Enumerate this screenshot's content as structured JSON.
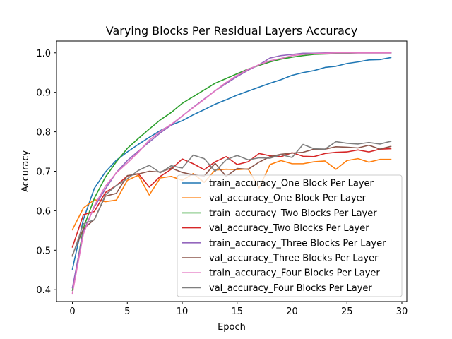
{
  "chart_data": {
    "type": "line",
    "title": "Varying Blocks Per Residual Layers Accuracy",
    "xlabel": "Epoch",
    "ylabel": "Accuracy",
    "xlim": [
      -1.45,
      30.45
    ],
    "ylim": [
      0.37,
      1.03
    ],
    "xticks": [
      0,
      5,
      10,
      15,
      20,
      25,
      30
    ],
    "yticks": [
      0.4,
      0.5,
      0.6,
      0.7,
      0.8,
      0.9,
      1.0
    ],
    "ytick_labels": [
      "0.4",
      "0.5",
      "0.6",
      "0.7",
      "0.8",
      "0.9",
      "1.0"
    ],
    "legend_position": "lower-right",
    "x": [
      0,
      1,
      2,
      3,
      4,
      5,
      6,
      7,
      8,
      9,
      10,
      11,
      12,
      13,
      14,
      15,
      16,
      17,
      18,
      19,
      20,
      21,
      22,
      23,
      24,
      25,
      26,
      27,
      28,
      29
    ],
    "series": [
      {
        "name": "train_accuracy_One Block Per Layer",
        "color": "#1f77b4",
        "values": [
          0.452,
          0.578,
          0.657,
          0.698,
          0.728,
          0.749,
          0.768,
          0.786,
          0.803,
          0.817,
          0.828,
          0.843,
          0.856,
          0.87,
          0.881,
          0.893,
          0.903,
          0.913,
          0.923,
          0.932,
          0.943,
          0.95,
          0.955,
          0.963,
          0.966,
          0.973,
          0.977,
          0.982,
          0.983,
          0.988
        ]
      },
      {
        "name": "val_accuracy_One Block Per Layer",
        "color": "#ff7f0e",
        "values": [
          0.552,
          0.607,
          0.628,
          0.623,
          0.627,
          0.677,
          0.69,
          0.64,
          0.683,
          0.687,
          0.677,
          0.694,
          0.672,
          0.703,
          0.705,
          0.704,
          0.706,
          0.658,
          0.717,
          0.727,
          0.719,
          0.719,
          0.724,
          0.726,
          0.705,
          0.727,
          0.732,
          0.723,
          0.73,
          0.73
        ]
      },
      {
        "name": "train_accuracy_Two Blocks Per Layer",
        "color": "#2ca02c",
        "values": [
          0.398,
          0.556,
          0.632,
          0.685,
          0.724,
          0.758,
          0.783,
          0.807,
          0.83,
          0.849,
          0.872,
          0.889,
          0.906,
          0.923,
          0.935,
          0.947,
          0.959,
          0.968,
          0.977,
          0.984,
          0.989,
          0.993,
          0.996,
          0.997,
          0.998,
          0.999,
          1.0,
          1.0,
          1.0,
          1.0
        ]
      },
      {
        "name": "val_accuracy_Two Blocks Per Layer",
        "color": "#d62728",
        "values": [
          0.508,
          0.59,
          0.598,
          0.646,
          0.664,
          0.688,
          0.694,
          0.66,
          0.687,
          0.705,
          0.731,
          0.719,
          0.704,
          0.724,
          0.737,
          0.717,
          0.724,
          0.745,
          0.739,
          0.737,
          0.747,
          0.738,
          0.737,
          0.745,
          0.748,
          0.749,
          0.754,
          0.749,
          0.756,
          0.757
        ]
      },
      {
        "name": "train_accuracy_Three Blocks Per Layer",
        "color": "#9467bd",
        "values": [
          0.405,
          0.548,
          0.61,
          0.655,
          0.697,
          0.727,
          0.751,
          0.774,
          0.797,
          0.817,
          0.84,
          0.862,
          0.883,
          0.904,
          0.922,
          0.94,
          0.956,
          0.97,
          0.987,
          0.993,
          0.996,
          0.999,
          0.999,
          1.0,
          1.0,
          1.0,
          1.0,
          1.0,
          1.0,
          1.0
        ]
      },
      {
        "name": "val_accuracy_Three Blocks Per Layer",
        "color": "#8c564b",
        "values": [
          0.488,
          0.554,
          0.578,
          0.637,
          0.644,
          0.689,
          0.693,
          0.7,
          0.698,
          0.708,
          0.697,
          0.691,
          0.688,
          0.72,
          0.687,
          0.707,
          0.705,
          0.723,
          0.737,
          0.743,
          0.746,
          0.748,
          0.756,
          0.756,
          0.762,
          0.761,
          0.759,
          0.766,
          0.756,
          0.763
        ]
      },
      {
        "name": "train_accuracy_Four Blocks Per Layer",
        "color": "#e377c2",
        "values": [
          0.391,
          0.541,
          0.613,
          0.662,
          0.696,
          0.721,
          0.748,
          0.779,
          0.801,
          0.819,
          0.84,
          0.861,
          0.882,
          0.904,
          0.925,
          0.943,
          0.958,
          0.97,
          0.98,
          0.986,
          0.993,
          0.996,
          0.998,
          0.999,
          1.0,
          1.0,
          1.0,
          1.0,
          1.0,
          1.0
        ]
      },
      {
        "name": "val_accuracy_Four Blocks Per Layer",
        "color": "#7f7f7f",
        "values": [
          0.485,
          0.567,
          0.577,
          0.64,
          0.664,
          0.681,
          0.702,
          0.715,
          0.696,
          0.714,
          0.708,
          0.741,
          0.732,
          0.7,
          0.729,
          0.74,
          0.729,
          0.734,
          0.733,
          0.742,
          0.735,
          0.768,
          0.757,
          0.756,
          0.775,
          0.771,
          0.769,
          0.773,
          0.769,
          0.776
        ]
      }
    ]
  }
}
